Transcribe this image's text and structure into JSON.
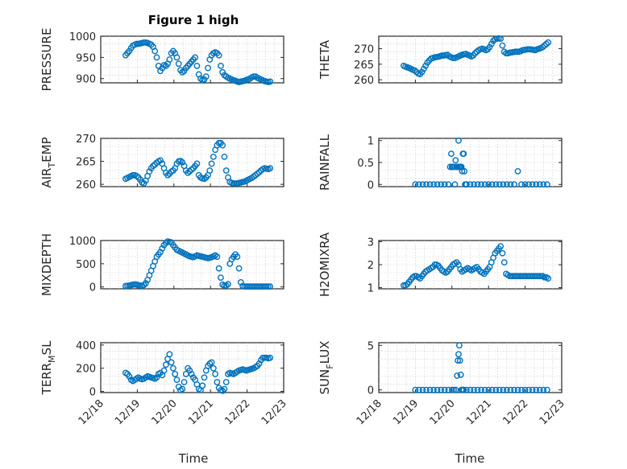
{
  "figure": {
    "title": "Figure 1 high",
    "xlabel": "Time",
    "marker_color": "#0072BD",
    "x_tick_labels": [
      "12/18",
      "12/19",
      "12/20",
      "12/21",
      "12/22",
      "12/23"
    ]
  },
  "chart_data": [
    {
      "type": "scatter",
      "ylabel": "PRESSURE",
      "xlim": [
        "12/18",
        "12/23"
      ],
      "ylim": [
        890,
        1000
      ],
      "yticks": [
        900,
        950,
        1000
      ],
      "grid": true,
      "x": [
        18.68,
        18.73,
        18.78,
        18.83,
        18.88,
        18.93,
        18.98,
        19.03,
        19.08,
        19.13,
        19.18,
        19.23,
        19.28,
        19.33,
        19.38,
        19.43,
        19.48,
        19.53,
        19.58,
        19.63,
        19.68,
        19.73,
        19.78,
        19.83,
        19.88,
        19.93,
        19.98,
        20.03,
        20.08,
        20.13,
        20.18,
        20.23,
        20.28,
        20.33,
        20.38,
        20.43,
        20.48,
        20.53,
        20.58,
        20.63,
        20.68,
        20.73,
        20.78,
        20.83,
        20.88,
        20.93,
        20.98,
        21.03,
        21.08,
        21.13,
        21.18,
        21.23,
        21.28,
        21.33,
        21.38,
        21.43,
        21.48,
        21.53,
        21.58,
        21.63,
        21.68,
        21.73,
        21.78,
        21.83,
        21.88,
        21.93,
        21.98,
        22.03,
        22.08,
        22.13,
        22.18,
        22.23,
        22.28,
        22.33,
        22.38,
        22.43,
        22.48,
        22.53,
        22.58,
        22.63
      ],
      "y": [
        955,
        960,
        965,
        972,
        978,
        980,
        982,
        982,
        983,
        984,
        985,
        985,
        984,
        982,
        980,
        975,
        965,
        950,
        930,
        918,
        925,
        932,
        930,
        935,
        945,
        960,
        965,
        960,
        950,
        935,
        920,
        915,
        918,
        925,
        930,
        935,
        940,
        945,
        950,
        930,
        910,
        900,
        897,
        898,
        905,
        925,
        945,
        955,
        960,
        962,
        960,
        955,
        930,
        915,
        908,
        905,
        902,
        900,
        898,
        896,
        895,
        893,
        892,
        893,
        894,
        895,
        897,
        898,
        900,
        903,
        905,
        905,
        902,
        900,
        898,
        896,
        894,
        893,
        892,
        893
      ]
    },
    {
      "type": "scatter",
      "ylabel": "THETA",
      "xlim": [
        "12/18",
        "12/23"
      ],
      "ylim": [
        259,
        274
      ],
      "yticks": [
        260,
        265,
        270
      ],
      "grid": true,
      "x": [
        18.68,
        18.73,
        18.78,
        18.83,
        18.88,
        18.93,
        18.98,
        19.03,
        19.08,
        19.13,
        19.18,
        19.23,
        19.28,
        19.33,
        19.38,
        19.43,
        19.48,
        19.53,
        19.58,
        19.63,
        19.68,
        19.73,
        19.78,
        19.83,
        19.88,
        19.93,
        19.98,
        20.03,
        20.08,
        20.13,
        20.18,
        20.23,
        20.28,
        20.33,
        20.38,
        20.43,
        20.48,
        20.53,
        20.58,
        20.63,
        20.68,
        20.73,
        20.78,
        20.83,
        20.88,
        20.93,
        20.98,
        21.03,
        21.08,
        21.13,
        21.18,
        21.23,
        21.28,
        21.33,
        21.38,
        21.43,
        21.48,
        21.53,
        21.58,
        21.63,
        21.68,
        21.73,
        21.78,
        21.83,
        21.88,
        21.93,
        21.98,
        22.03,
        22.08,
        22.13,
        22.18,
        22.23,
        22.28,
        22.33,
        22.38,
        22.43,
        22.48,
        22.53,
        22.58,
        22.63
      ],
      "y": [
        264.5,
        264.2,
        264,
        263.8,
        263.5,
        263.2,
        263,
        262.5,
        262,
        261.8,
        262.5,
        263.5,
        264.5,
        265.5,
        266.2,
        266.8,
        267,
        267.2,
        267.3,
        267.4,
        267.6,
        267.8,
        267.8,
        267.9,
        268,
        267.5,
        267.2,
        267,
        267,
        267.2,
        267.5,
        267.8,
        268,
        268.2,
        268.3,
        268,
        267.8,
        267.5,
        267.8,
        268.5,
        269,
        269.5,
        269.8,
        270,
        269.8,
        269.5,
        269.8,
        270.5,
        271.5,
        272.5,
        273,
        273.2,
        273.3,
        273.2,
        271,
        269,
        268.5,
        268.5,
        268.7,
        268.8,
        268.9,
        269,
        269,
        269,
        269.2,
        269.5,
        269.6,
        269.7,
        269.8,
        269.8,
        269.7,
        269.6,
        269.5,
        269.8,
        270,
        270.2,
        270.5,
        271,
        271.5,
        272
      ]
    },
    {
      "type": "scatter",
      "ylabel": "AIR_TEMP",
      "xlim": [
        "12/18",
        "12/23"
      ],
      "ylim": [
        259.5,
        270
      ],
      "yticks": [
        260,
        265,
        270
      ],
      "grid": true,
      "x": [
        18.68,
        18.73,
        18.78,
        18.83,
        18.88,
        18.93,
        18.98,
        19.03,
        19.08,
        19.13,
        19.18,
        19.23,
        19.28,
        19.33,
        19.38,
        19.43,
        19.48,
        19.53,
        19.58,
        19.63,
        19.68,
        19.73,
        19.78,
        19.83,
        19.88,
        19.93,
        19.98,
        20.03,
        20.08,
        20.13,
        20.18,
        20.23,
        20.28,
        20.33,
        20.38,
        20.43,
        20.48,
        20.53,
        20.58,
        20.63,
        20.68,
        20.73,
        20.78,
        20.83,
        20.88,
        20.93,
        20.98,
        21.03,
        21.08,
        21.13,
        21.18,
        21.23,
        21.28,
        21.33,
        21.38,
        21.43,
        21.48,
        21.53,
        21.58,
        21.63,
        21.68,
        21.73,
        21.78,
        21.83,
        21.88,
        21.93,
        21.98,
        22.03,
        22.08,
        22.13,
        22.18,
        22.23,
        22.28,
        22.33,
        22.38,
        22.43,
        22.48,
        22.53,
        22.58,
        22.63
      ],
      "y": [
        261.2,
        261.4,
        261.6,
        261.8,
        262,
        262,
        261.8,
        261.5,
        261,
        260.4,
        260.2,
        260.8,
        261.8,
        262.8,
        263.5,
        264,
        264.3,
        264.7,
        265,
        265.2,
        264.5,
        263.5,
        262.5,
        262,
        262.3,
        262.8,
        263,
        263.5,
        264.5,
        265,
        265.1,
        264.8,
        264,
        263,
        262.5,
        262.8,
        263.2,
        263.5,
        264,
        264.5,
        262,
        261.5,
        261.3,
        261.2,
        261.5,
        262,
        263,
        264.5,
        266,
        267.5,
        268.5,
        269,
        269,
        268.5,
        266,
        263,
        261.5,
        260.5,
        260.3,
        260.2,
        260.2,
        260.2,
        260.3,
        260.4,
        260.5,
        260.6,
        260.8,
        261,
        261.2,
        261.4,
        261.7,
        262,
        262.3,
        262.6,
        263,
        263.3,
        263.5,
        263.4,
        263.3,
        263.5
      ]
    },
    {
      "type": "scatter",
      "ylabel": "RAINFALL",
      "xlim": [
        "12/18",
        "12/23"
      ],
      "ylim": [
        -0.05,
        1.05
      ],
      "yticks": [
        0,
        0.5,
        1
      ],
      "grid": true,
      "x": [
        19.0,
        19.1,
        19.2,
        19.3,
        19.4,
        19.5,
        19.6,
        19.7,
        19.8,
        19.9,
        19.95,
        19.98,
        20.0,
        20.02,
        20.05,
        20.08,
        20.1,
        20.12,
        20.14,
        20.16,
        20.18,
        20.2,
        20.22,
        20.24,
        20.26,
        20.28,
        20.3,
        20.32,
        20.34,
        20.36,
        20.38,
        20.4,
        20.5,
        20.6,
        20.7,
        20.8,
        20.9,
        21.0,
        21.1,
        21.2,
        21.3,
        21.4,
        21.5,
        21.6,
        21.7,
        21.8,
        21.9,
        22.0,
        22.1,
        22.2,
        22.3,
        22.4,
        22.5,
        22.6
      ],
      "y": [
        0,
        0,
        0,
        0,
        0,
        0,
        0,
        0,
        0,
        0,
        0.4,
        0.7,
        0.4,
        0.4,
        0.4,
        0,
        0.55,
        0.4,
        0.4,
        0.4,
        1,
        0.4,
        0.4,
        0.4,
        0.4,
        0.3,
        0.7,
        0.7,
        0.3,
        0,
        0,
        0,
        0,
        0,
        0,
        0,
        0,
        0,
        0,
        0,
        0,
        0,
        0,
        0,
        0,
        0.3,
        0,
        0,
        0,
        0,
        0,
        0,
        0,
        0
      ]
    },
    {
      "type": "scatter",
      "ylabel": "MIXDEPTH",
      "xlim": [
        "12/18",
        "12/23"
      ],
      "ylim": [
        -40,
        1000
      ],
      "yticks": [
        0,
        500,
        1000
      ],
      "grid": true,
      "x": [
        18.68,
        18.73,
        18.78,
        18.83,
        18.88,
        18.93,
        18.98,
        19.03,
        19.08,
        19.13,
        19.18,
        19.23,
        19.28,
        19.33,
        19.38,
        19.43,
        19.48,
        19.53,
        19.58,
        19.63,
        19.68,
        19.73,
        19.78,
        19.83,
        19.88,
        19.93,
        19.98,
        20.03,
        20.08,
        20.13,
        20.18,
        20.23,
        20.28,
        20.33,
        20.38,
        20.43,
        20.48,
        20.53,
        20.58,
        20.63,
        20.68,
        20.73,
        20.78,
        20.83,
        20.88,
        20.93,
        20.98,
        21.03,
        21.08,
        21.13,
        21.18,
        21.23,
        21.28,
        21.33,
        21.38,
        21.43,
        21.48,
        21.53,
        21.58,
        21.63,
        21.68,
        21.73,
        21.78,
        21.83,
        21.88,
        21.93,
        21.98,
        22.03,
        22.08,
        22.13,
        22.18,
        22.23,
        22.28,
        22.33,
        22.38,
        22.43,
        22.48,
        22.53,
        22.58,
        22.63
      ],
      "y": [
        20,
        25,
        30,
        40,
        50,
        55,
        50,
        40,
        30,
        25,
        40,
        80,
        150,
        250,
        350,
        450,
        550,
        650,
        700,
        750,
        830,
        900,
        950,
        980,
        970,
        960,
        900,
        850,
        800,
        780,
        760,
        740,
        720,
        700,
        680,
        660,
        650,
        640,
        660,
        680,
        670,
        660,
        650,
        640,
        630,
        620,
        630,
        640,
        660,
        680,
        650,
        400,
        200,
        50,
        30,
        30,
        60,
        500,
        600,
        650,
        700,
        650,
        400,
        100,
        20,
        10,
        10,
        10,
        10,
        10,
        10,
        10,
        10,
        10,
        10,
        10,
        10,
        10,
        10,
        10
      ]
    },
    {
      "type": "scatter",
      "ylabel": "H2OMIXRA",
      "xlim": [
        "12/18",
        "12/23"
      ],
      "ylim": [
        0.95,
        3.05
      ],
      "yticks": [
        1,
        2,
        3
      ],
      "grid": true,
      "x": [
        18.68,
        18.73,
        18.78,
        18.83,
        18.88,
        18.93,
        18.98,
        19.03,
        19.08,
        19.13,
        19.18,
        19.23,
        19.28,
        19.33,
        19.38,
        19.43,
        19.48,
        19.53,
        19.58,
        19.63,
        19.68,
        19.73,
        19.78,
        19.83,
        19.88,
        19.93,
        19.98,
        20.03,
        20.08,
        20.13,
        20.18,
        20.23,
        20.28,
        20.33,
        20.38,
        20.43,
        20.48,
        20.53,
        20.58,
        20.63,
        20.68,
        20.73,
        20.78,
        20.83,
        20.88,
        20.93,
        20.98,
        21.03,
        21.08,
        21.13,
        21.18,
        21.23,
        21.28,
        21.33,
        21.38,
        21.43,
        21.48,
        21.53,
        21.58,
        21.63,
        21.68,
        21.73,
        21.78,
        21.83,
        21.88,
        21.93,
        21.98,
        22.03,
        22.08,
        22.13,
        22.18,
        22.23,
        22.28,
        22.33,
        22.38,
        22.43,
        22.48,
        22.53,
        22.58,
        22.63
      ],
      "y": [
        1.1,
        1.1,
        1.15,
        1.25,
        1.35,
        1.45,
        1.5,
        1.5,
        1.45,
        1.4,
        1.5,
        1.6,
        1.7,
        1.75,
        1.8,
        1.85,
        1.9,
        2.0,
        2.0,
        1.95,
        1.85,
        1.75,
        1.7,
        1.65,
        1.7,
        1.8,
        1.9,
        2.0,
        2.05,
        2.1,
        2.0,
        1.8,
        1.7,
        1.75,
        1.8,
        1.85,
        1.8,
        1.75,
        1.8,
        1.85,
        1.9,
        1.8,
        1.7,
        1.65,
        1.6,
        1.7,
        1.8,
        1.9,
        2.1,
        2.3,
        2.5,
        2.6,
        2.7,
        2.8,
        2.5,
        2.1,
        1.6,
        1.55,
        1.5,
        1.5,
        1.5,
        1.5,
        1.5,
        1.5,
        1.5,
        1.5,
        1.5,
        1.5,
        1.5,
        1.5,
        1.5,
        1.5,
        1.5,
        1.5,
        1.5,
        1.5,
        1.5,
        1.45,
        1.45,
        1.4
      ]
    },
    {
      "type": "scatter",
      "ylabel": "TERR_MSL",
      "xlim": [
        "12/18",
        "12/23"
      ],
      "ylim": [
        -10,
        420
      ],
      "yticks": [
        0,
        200,
        400
      ],
      "grid": true,
      "x": [
        18.68,
        18.73,
        18.78,
        18.83,
        18.88,
        18.93,
        18.98,
        19.03,
        19.08,
        19.13,
        19.18,
        19.23,
        19.28,
        19.33,
        19.38,
        19.43,
        19.48,
        19.53,
        19.58,
        19.63,
        19.68,
        19.73,
        19.78,
        19.83,
        19.88,
        19.93,
        19.98,
        20.03,
        20.08,
        20.13,
        20.18,
        20.23,
        20.28,
        20.33,
        20.38,
        20.43,
        20.48,
        20.53,
        20.58,
        20.63,
        20.68,
        20.73,
        20.78,
        20.83,
        20.88,
        20.93,
        20.98,
        21.03,
        21.08,
        21.13,
        21.18,
        21.23,
        21.28,
        21.33,
        21.38,
        21.43,
        21.48,
        21.53,
        21.58,
        21.63,
        21.68,
        21.73,
        21.78,
        21.83,
        21.88,
        21.93,
        21.98,
        22.03,
        22.08,
        22.13,
        22.18,
        22.23,
        22.28,
        22.33,
        22.38,
        22.43,
        22.48,
        22.53,
        22.58,
        22.63
      ],
      "y": [
        160,
        150,
        130,
        100,
        90,
        100,
        110,
        120,
        110,
        105,
        110,
        120,
        130,
        125,
        120,
        115,
        110,
        120,
        150,
        160,
        140,
        180,
        230,
        280,
        320,
        250,
        200,
        150,
        100,
        40,
        10,
        20,
        80,
        150,
        200,
        180,
        150,
        120,
        100,
        60,
        20,
        10,
        50,
        120,
        180,
        220,
        240,
        250,
        200,
        150,
        80,
        30,
        10,
        5,
        20,
        80,
        150,
        160,
        155,
        150,
        160,
        170,
        180,
        185,
        190,
        185,
        180,
        185,
        190,
        195,
        200,
        210,
        220,
        240,
        270,
        290,
        290,
        290,
        285,
        290
      ]
    },
    {
      "type": "scatter",
      "ylabel": "SUN_FLUX",
      "xlim": [
        "12/18",
        "12/23"
      ],
      "ylim": [
        -0.3,
        5.3
      ],
      "yticks": [
        0,
        5
      ],
      "grid": true,
      "x": [
        19.0,
        19.1,
        19.2,
        19.3,
        19.4,
        19.5,
        19.6,
        19.7,
        19.8,
        19.9,
        20.0,
        20.05,
        20.1,
        20.14,
        20.16,
        20.18,
        20.2,
        20.22,
        20.24,
        20.26,
        20.28,
        20.3,
        20.32,
        20.4,
        20.5,
        20.6,
        20.7,
        20.8,
        20.9,
        21.0,
        21.1,
        21.2,
        21.3,
        21.4,
        21.5,
        21.6,
        21.7,
        21.8,
        21.9,
        22.0,
        22.1,
        22.2,
        22.3,
        22.4,
        22.5,
        22.6
      ],
      "y": [
        0,
        0,
        0,
        0,
        0,
        0,
        0,
        0,
        0,
        0,
        0,
        0,
        0,
        1.6,
        3.3,
        4,
        5,
        3.3,
        1.7,
        0,
        0,
        0,
        0,
        0,
        0,
        0,
        0,
        0,
        0,
        0,
        0,
        0,
        0,
        0,
        0,
        0,
        0,
        0,
        0,
        0,
        0,
        0,
        0,
        0,
        0,
        0
      ]
    }
  ]
}
